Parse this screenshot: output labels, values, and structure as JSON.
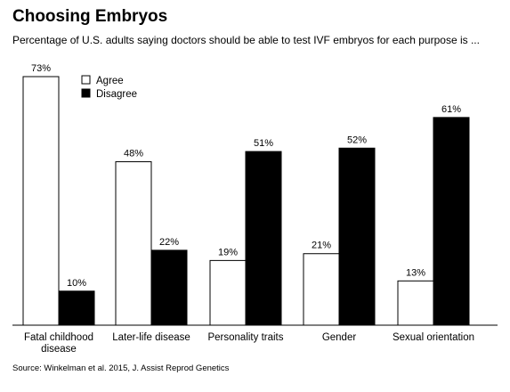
{
  "title": "Choosing Embryos",
  "subtitle": "Percentage of U.S. adults saying doctors should be able to test IVF embryos for each purpose is ...",
  "source": "Source: Winkelman et al. 2015, J. Assist Reprod Genetics",
  "chart_data": {
    "type": "bar",
    "categories": [
      [
        "Fatal childhood",
        "disease"
      ],
      [
        "Later-life disease"
      ],
      [
        "Personality traits"
      ],
      [
        "Gender"
      ],
      [
        "Sexual orientation"
      ]
    ],
    "series": [
      {
        "name": "Agree",
        "color": "#ffffff",
        "values": [
          73,
          48,
          19,
          21,
          13
        ],
        "labels": [
          "73%",
          "48%",
          "19%",
          "21%",
          "13%"
        ]
      },
      {
        "name": "Disagree",
        "color": "#000000",
        "values": [
          10,
          22,
          51,
          52,
          61
        ],
        "labels": [
          "10%",
          "22%",
          "51%",
          "52%",
          "61%"
        ]
      }
    ],
    "ylim": [
      0,
      73
    ],
    "legend": "top-left",
    "grid": false
  }
}
